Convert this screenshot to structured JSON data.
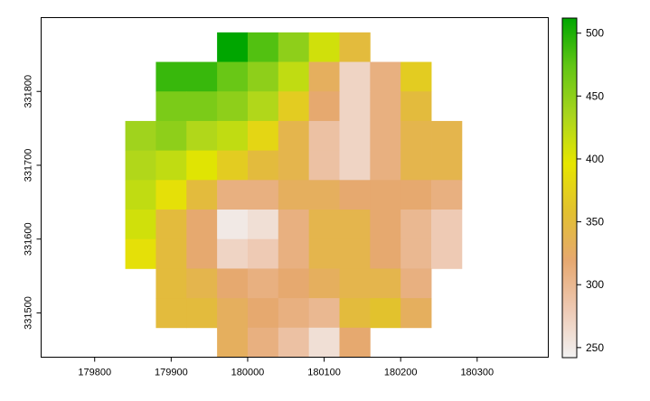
{
  "chart_data": {
    "type": "heatmap",
    "title": "",
    "xlabel": "",
    "ylabel": "",
    "grid": false,
    "legend": "right",
    "x_ticks": [
      179800,
      179900,
      180000,
      180100,
      180200,
      180300
    ],
    "y_ticks": [
      331500,
      331600,
      331700,
      331800
    ],
    "x_tick_labels": [
      "179800",
      "179900",
      "180000",
      "180100",
      "180200",
      "180300"
    ],
    "y_tick_labels": [
      "331500",
      "331600",
      "331700",
      "331800"
    ],
    "xlim": [
      179730,
      180393
    ],
    "ylim": [
      331440,
      331900
    ],
    "cell_size": 40,
    "x_start": 179840,
    "y_top": 331880,
    "colorbar": {
      "min": 242,
      "max": 512,
      "ticks": [
        250,
        300,
        350,
        400,
        450,
        500
      ],
      "tick_labels": [
        "250",
        "300",
        "350",
        "400",
        "450",
        "500"
      ],
      "colors": [
        "#f2f2f2",
        "#eec9b3",
        "#e6a870",
        "#e2c030",
        "#e6e600",
        "#a9d51e",
        "#63c615",
        "#00a600"
      ]
    },
    "grid_values": [
      [
        null,
        null,
        null,
        512,
        480,
        450,
        410,
        350,
        null,
        null,
        null,
        null
      ],
      [
        null,
        490,
        490,
        470,
        450,
        420,
        330,
        270,
        310,
        370,
        null,
        null
      ],
      [
        null,
        460,
        460,
        450,
        430,
        370,
        320,
        270,
        310,
        350,
        null,
        null
      ],
      [
        440,
        450,
        430,
        420,
        380,
        340,
        290,
        270,
        310,
        340,
        340,
        null
      ],
      [
        430,
        420,
        400,
        370,
        350,
        340,
        290,
        270,
        310,
        340,
        340,
        null
      ],
      [
        420,
        390,
        350,
        310,
        310,
        330,
        330,
        320,
        320,
        320,
        310,
        null
      ],
      [
        410,
        350,
        320,
        250,
        260,
        310,
        340,
        340,
        320,
        300,
        280,
        null
      ],
      [
        390,
        350,
        320,
        270,
        280,
        310,
        340,
        340,
        320,
        300,
        280,
        null
      ],
      [
        null,
        350,
        340,
        320,
        310,
        320,
        330,
        340,
        340,
        310,
        null,
        null
      ],
      [
        null,
        350,
        350,
        330,
        320,
        310,
        300,
        350,
        360,
        330,
        null,
        null
      ],
      [
        null,
        null,
        null,
        330,
        310,
        290,
        260,
        320,
        null,
        null,
        null,
        null
      ]
    ]
  }
}
